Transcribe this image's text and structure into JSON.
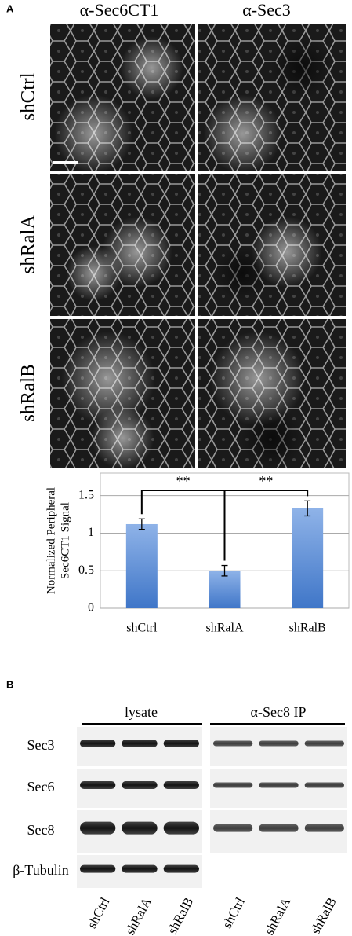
{
  "panel_labels": [
    "A",
    "B"
  ],
  "microscopy": {
    "columns": [
      "α-Sec6CT1",
      "α-Sec3"
    ],
    "rows": [
      "shCtrl",
      "shRalA",
      "shRalB"
    ]
  },
  "chart_data": {
    "type": "bar",
    "y_label": [
      "Normalized Peripheral",
      "Sec6CT1 Signal"
    ],
    "categories": [
      "shCtrl",
      "shRalA",
      "shRalB"
    ],
    "values": [
      1.12,
      0.5,
      1.33
    ],
    "errors": [
      0.07,
      0.07,
      0.1
    ],
    "color": "#5b8ed6",
    "ylim": [
      0,
      1.8
    ],
    "yticks": [
      0,
      0.5,
      1,
      1.5
    ],
    "grid": true,
    "annotations": [
      "**",
      "**"
    ]
  },
  "blot": {
    "groups": [
      "lysate",
      "α-Sec8 IP"
    ],
    "rows": [
      "Sec3",
      "Sec6",
      "Sec8",
      "β-Tubulin"
    ],
    "lanes": [
      "shCtrl",
      "shRalA",
      "shRalB",
      "shCtrl",
      "shRalA",
      "shRalB"
    ]
  }
}
